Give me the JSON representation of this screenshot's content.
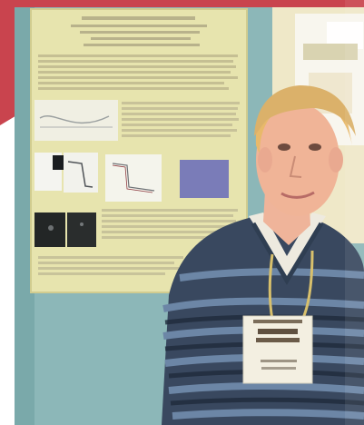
{
  "photo": {
    "subject": "man-with-name-badge",
    "accent_red": "#c8444e",
    "wall_blue": "#8fb8b8",
    "poster_color": "#e8e4b0"
  },
  "badge": {
    "line_1": "",
    "line_2": ""
  }
}
